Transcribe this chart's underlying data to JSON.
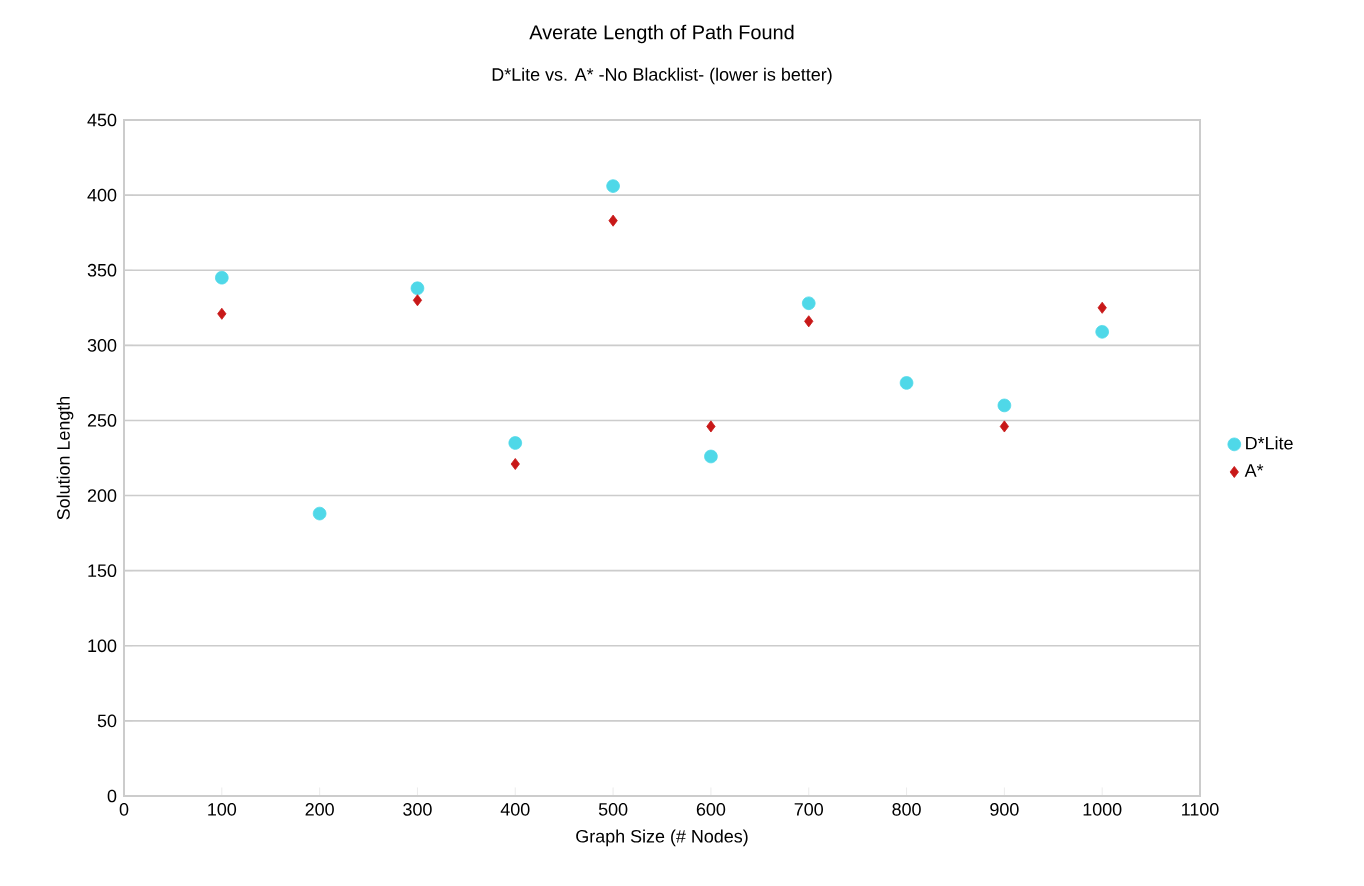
{
  "chart_data": {
    "type": "scatter",
    "title": "Averate Length of Path Found",
    "subtitle": "D*Lite vs. A* -No Blacklist- (lower is better)",
    "xlabel": "Graph Size (# Nodes)",
    "ylabel": "Solution Length",
    "x": [
      100,
      200,
      300,
      400,
      500,
      600,
      700,
      800,
      900,
      1000
    ],
    "series": [
      {
        "name": "D*Lite",
        "color": "#4fd8e8",
        "marker": "circle",
        "values": [
          345,
          188,
          338,
          235,
          406,
          226,
          328,
          275,
          260,
          309
        ]
      },
      {
        "name": "A*",
        "color": "#c81818",
        "marker": "diamond",
        "values": [
          321,
          null,
          330,
          221,
          383,
          246,
          316,
          null,
          246,
          325
        ]
      }
    ],
    "xlim": [
      0,
      1100
    ],
    "xticks": [
      0,
      100,
      200,
      300,
      400,
      500,
      600,
      700,
      800,
      900,
      1000,
      1100
    ],
    "ylim": [
      0,
      450
    ],
    "yticks": [
      0,
      50,
      100,
      150,
      200,
      250,
      300,
      350,
      400,
      450
    ],
    "grid": "y",
    "legend": "right"
  }
}
